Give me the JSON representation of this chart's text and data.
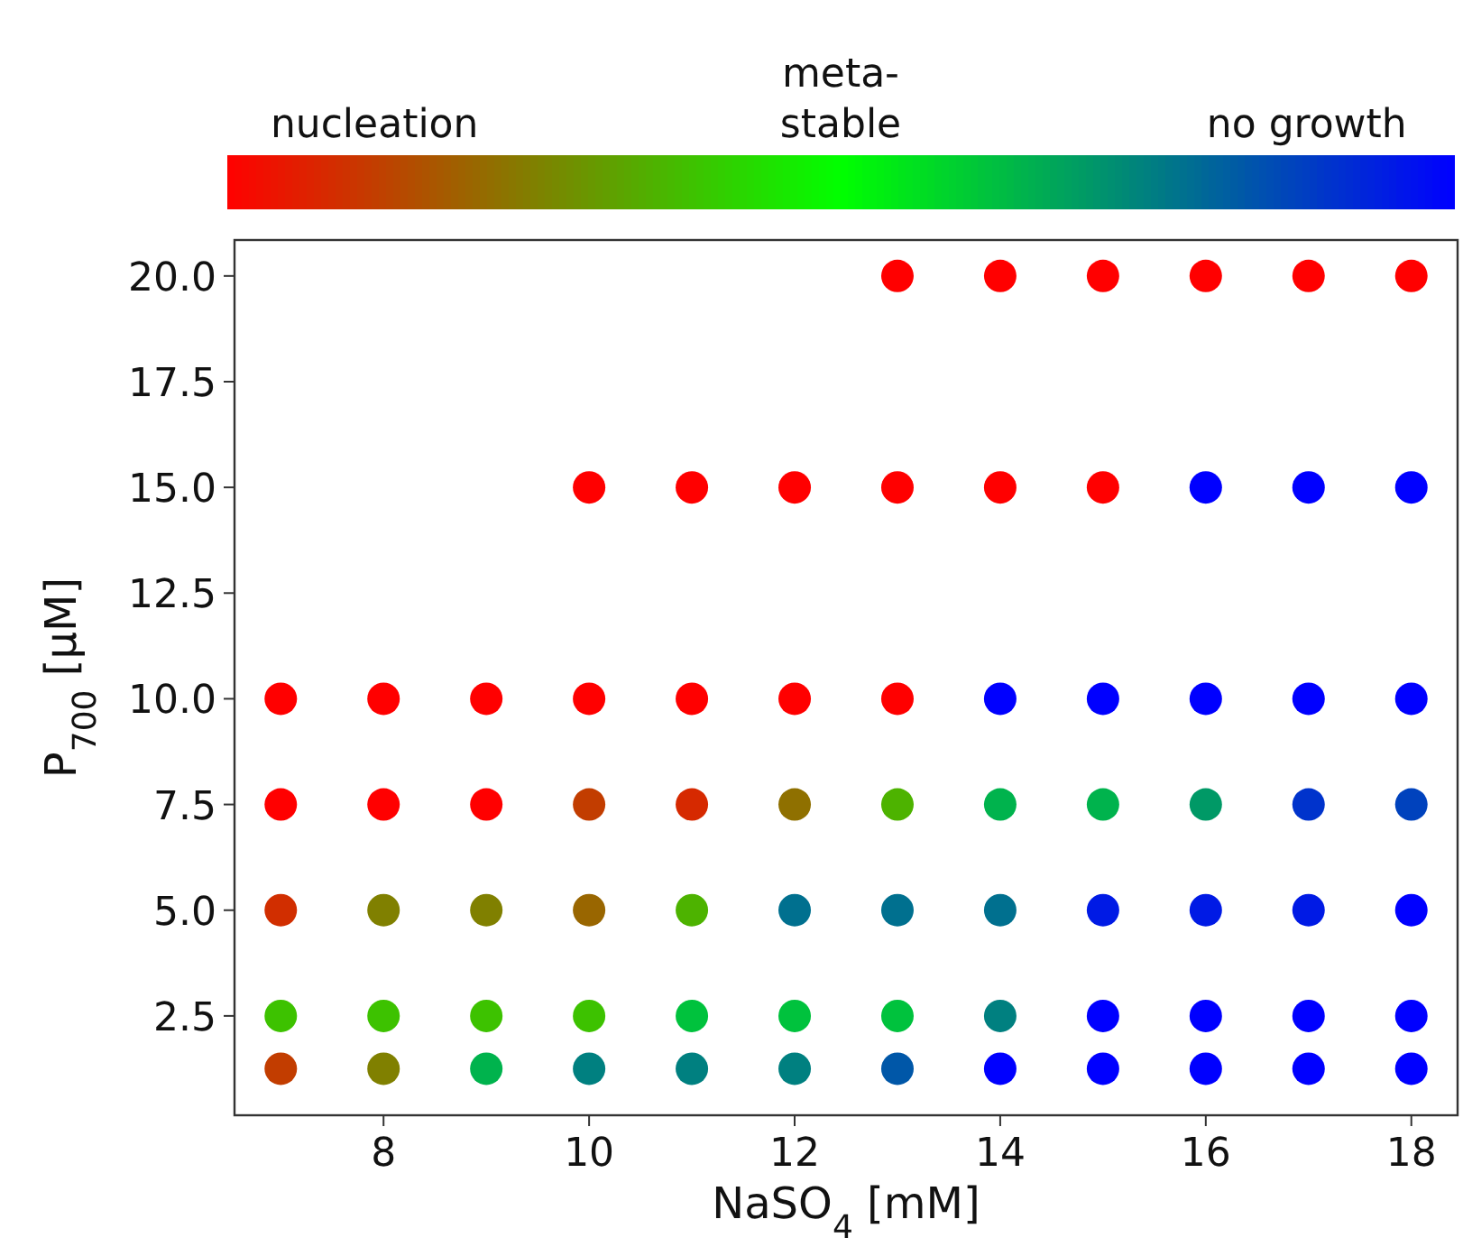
{
  "chart_data": {
    "type": "scatter",
    "xlabel": "NaSO$_{4}$ [mM]",
    "ylabel": "P$_{700}$ [μM]",
    "xlim": [
      6.55,
      18.45
    ],
    "ylim": [
      0.15,
      20.85
    ],
    "xticks": [
      8,
      10,
      12,
      14,
      16,
      18
    ],
    "yticks": [
      2.5,
      {
        "value": 5,
        "label": "5.0"
      },
      {
        "value": 7.5,
        "label": "7.5"
      },
      {
        "value": 10,
        "label": "10.0"
      },
      {
        "value": 12.5,
        "label": "12.5"
      },
      {
        "value": 15,
        "label": "15.0"
      },
      {
        "value": 17.5,
        "label": "17.5"
      },
      {
        "value": 20,
        "label": "20.0"
      }
    ],
    "clim": [
      0,
      1
    ],
    "cticks": [
      {
        "value": 0.12,
        "label": "nucleation"
      },
      {
        "value": 0.5,
        "label": "meta-\nstable"
      },
      {
        "value": 0.88,
        "label": "no growth"
      }
    ],
    "marker": "circle",
    "grid": false,
    "x": [
      13,
      14,
      15,
      16,
      17,
      18,
      10,
      11,
      12,
      13,
      14,
      15,
      16,
      17,
      18,
      7,
      8,
      9,
      10,
      11,
      12,
      13,
      14,
      15,
      16,
      17,
      18,
      7,
      8,
      9,
      10,
      11,
      12,
      13,
      14,
      15,
      16,
      17,
      18,
      7,
      8,
      9,
      10,
      11,
      12,
      13,
      14,
      15,
      16,
      17,
      18,
      7,
      8,
      9,
      10,
      11,
      12,
      13,
      14,
      15,
      16,
      17,
      18,
      7,
      8,
      9,
      10,
      11,
      12,
      13,
      14,
      15,
      16,
      17,
      18
    ],
    "values": [
      20,
      20,
      20,
      20,
      20,
      20,
      15,
      15,
      15,
      15,
      15,
      15,
      15,
      15,
      15,
      10,
      10,
      10,
      10,
      10,
      10,
      10,
      10,
      10,
      10,
      10,
      10,
      7.5,
      7.5,
      7.5,
      7.5,
      7.5,
      7.5,
      7.5,
      7.5,
      7.5,
      7.5,
      7.5,
      7.5,
      5,
      5,
      5,
      5,
      5,
      5,
      5,
      5,
      5,
      5,
      5,
      5,
      2.5,
      2.5,
      2.5,
      2.5,
      2.5,
      2.5,
      2.5,
      2.5,
      2.5,
      2.5,
      2.5,
      2.5,
      1.25,
      1.25,
      1.25,
      1.25,
      1.25,
      1.25,
      1.25,
      1.25,
      1.25,
      1.25,
      1.25,
      1.25
    ],
    "cvalues": [
      0,
      0,
      0,
      0,
      0,
      0,
      0,
      0,
      0,
      0,
      0,
      0,
      1,
      1,
      1,
      0,
      0,
      0,
      0,
      0,
      0,
      0,
      1,
      1,
      1,
      1,
      1,
      0,
      0,
      0,
      0.12,
      0.08,
      0.22,
      0.35,
      0.65,
      0.65,
      0.7,
      0.9,
      0.87,
      0.09,
      0.25,
      0.25,
      0.2,
      0.35,
      0.78,
      0.78,
      0.78,
      0.95,
      0.95,
      0.95,
      1,
      0.38,
      0.38,
      0.38,
      0.38,
      0.62,
      0.62,
      0.62,
      0.75,
      1,
      1,
      1,
      1,
      0.12,
      0.25,
      0.65,
      0.75,
      0.75,
      0.75,
      0.83,
      1,
      1,
      1,
      1,
      1
    ]
  }
}
